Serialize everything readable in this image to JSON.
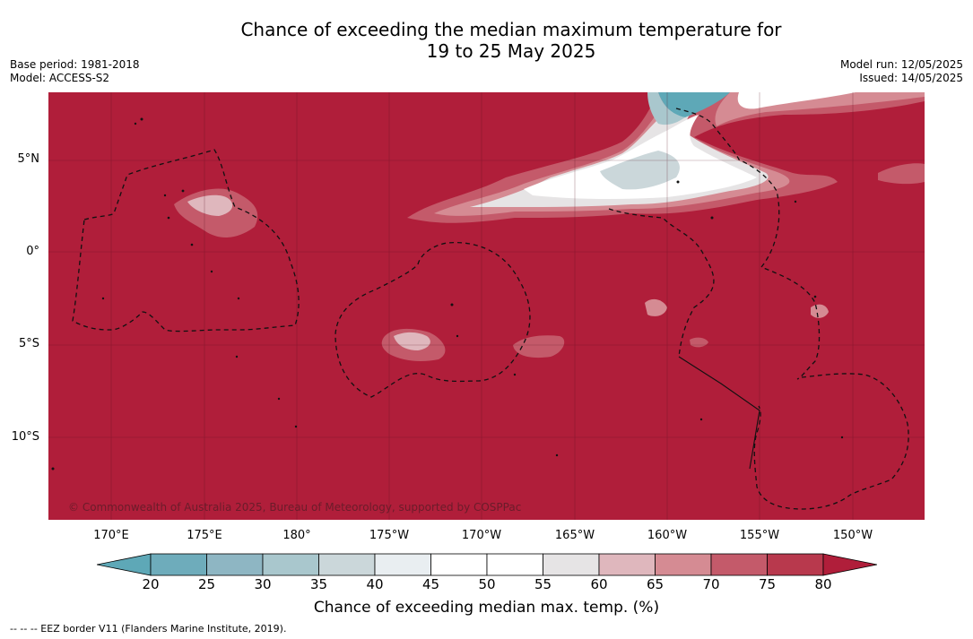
{
  "title_line1": "Chance of exceeding the median maximum temperature for",
  "title_line2": "19 to 25 May 2025",
  "meta_left": {
    "base_period": "Base period: 1981-2018",
    "model": "Model: ACCESS-S2"
  },
  "meta_right": {
    "model_run": "Model run: 12/05/2025",
    "issued": "Issued: 14/05/2025"
  },
  "lat_labels": [
    "5°N",
    "0°",
    "5°S",
    "10°S"
  ],
  "lon_labels": [
    "170°E",
    "175°E",
    "180°",
    "175°W",
    "170°W",
    "165°W",
    "160°W",
    "155°W",
    "150°W"
  ],
  "copyright": "© Commonwealth of Australia 2025, Bureau of Meteorology, supported by COSPPac",
  "colorbar": {
    "ticks": [
      "20",
      "25",
      "30",
      "35",
      "40",
      "45",
      "50",
      "55",
      "60",
      "65",
      "70",
      "75",
      "80"
    ],
    "colors": [
      "#5ea8b7",
      "#6eacbb",
      "#8eb6c3",
      "#a9c7cd",
      "#cbd7da",
      "#e9eef1",
      "#ffffff",
      "#ffffff",
      "#e6e4e5",
      "#dfb7bd",
      "#d58b93",
      "#c45a6a",
      "#b8394d",
      "#b01e3a"
    ],
    "label": "Chance of exceeding median max. temp. (%)"
  },
  "footnote": "--  --  -- EEZ border V11 (Flanders Marine Institute, 2019)."
}
